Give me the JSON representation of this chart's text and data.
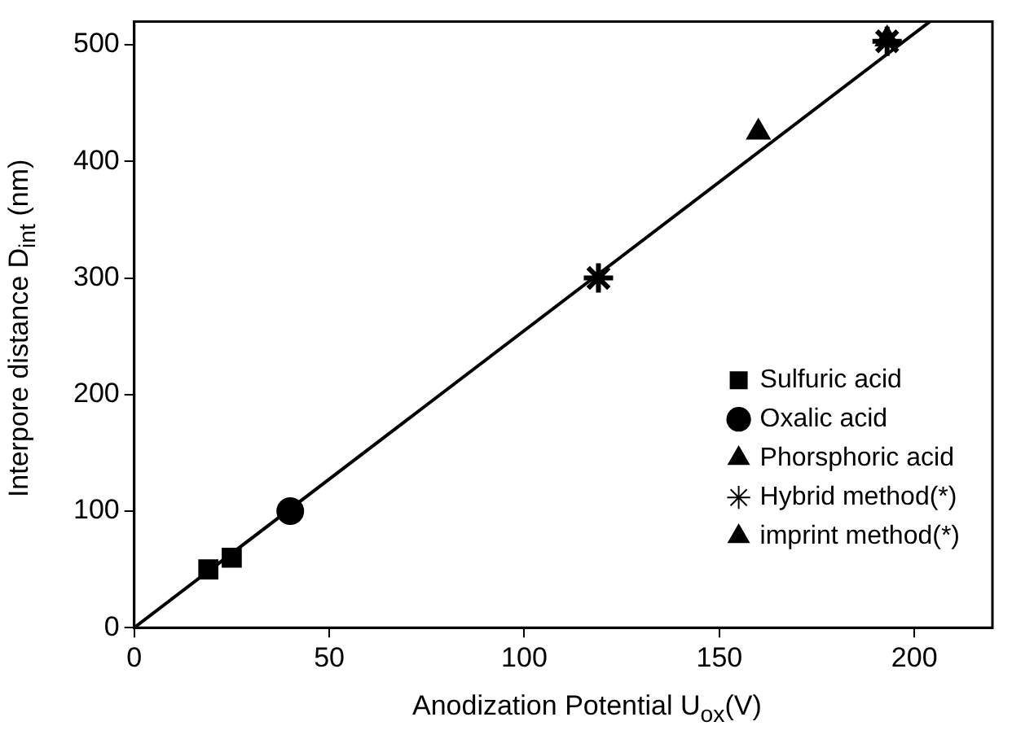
{
  "chart_data": {
    "type": "scatter",
    "xlabel": "Anodization Potential U$_{ox}$(V)",
    "ylabel": "Interpore distance D$_{int}$ (nm)",
    "xlim": [
      0,
      220
    ],
    "xticks": [
      0,
      50,
      100,
      150,
      200
    ],
    "ylim": [
      0,
      520
    ],
    "yticks": [
      0,
      100,
      200,
      300,
      400,
      500
    ],
    "grid": false,
    "legend": "bottom right",
    "series": [
      {
        "name": "Sulfuric acid",
        "color": "#000000",
        "marker": "square",
        "x": [
          19,
          25
        ],
        "values": [
          50,
          60
        ]
      },
      {
        "name": "Oxalic acid",
        "color": "#000000",
        "marker": "circle",
        "x": [
          40
        ],
        "values": [
          100
        ]
      },
      {
        "name": "Phorsphoric acid",
        "color": "#000000",
        "marker": "triangle",
        "x": [
          160
        ],
        "values": [
          425
        ]
      },
      {
        "name": "Hybrid method(*)",
        "color": "#000000",
        "marker": "cross",
        "x": [
          119,
          193
        ],
        "values": [
          300,
          503
        ]
      },
      {
        "name": "imprint method(*)",
        "color": "#000000",
        "marker": "triangle",
        "x": [
          193
        ],
        "values": [
          505
        ]
      },
      {
        "type": "line",
        "color": "#000000",
        "marker": "none",
        "x": [
          0,
          204
        ],
        "values": [
          0,
          520
        ]
      }
    ]
  }
}
